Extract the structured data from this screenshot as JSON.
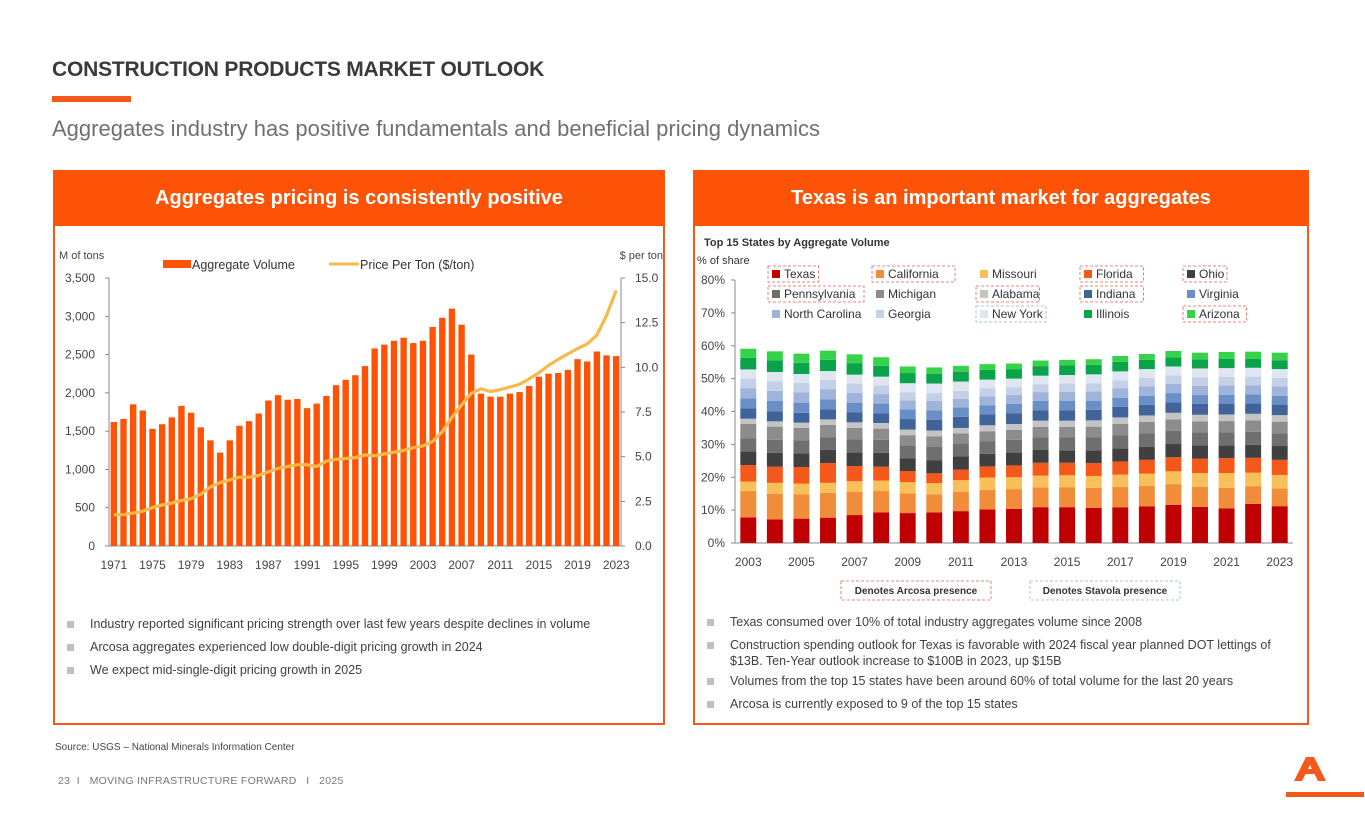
{
  "page": {
    "title": "CONSTRUCTION PRODUCTS MARKET OUTLOOK",
    "subtitle": "Aggregates industry has positive fundamentals and beneficial pricing dynamics",
    "source": "Source: USGS – National Minerals Information Center",
    "footer": "23  I   MOVING INFRASTRUCTURE FORWARD   I   2025"
  },
  "colors": {
    "accent": "#fc5307",
    "price_line": "#f6b94a"
  },
  "left_panel": {
    "header": "Aggregates pricing is consistently positive",
    "bullets": [
      "Industry reported significant pricing strength over last few years despite declines in volume",
      "Arcosa aggregates experienced low double-digit pricing growth in 2024",
      "We expect mid-single-digit pricing growth in 2025"
    ]
  },
  "right_panel": {
    "header": "Texas is an important market for aggregates",
    "bullets": [
      "Texas consumed over 10% of total industry aggregates volume since 2008",
      "Construction spending outlook for Texas is favorable with 2024 fiscal year planned DOT lettings of $13B. Ten-Year outlook increase to $100B in 2023, up $15B",
      "Volumes from the top 15 states have been around 60% of total volume for the last 20 years",
      "Arcosa is currently exposed to 9 of the top 15 states"
    ],
    "note_arcosa": "Denotes Arcosa presence",
    "note_stavola": "Denotes Stavola presence"
  },
  "chart_data": [
    {
      "type": "bar",
      "ylabel": "M of tons",
      "y2label": "$ per ton",
      "ylim": [
        0,
        3500
      ],
      "y2lim": [
        0,
        15
      ],
      "yticks": [
        "0",
        "500",
        "1,000",
        "1,500",
        "2,000",
        "2,500",
        "3,000",
        "3,500"
      ],
      "y2ticks": [
        "0.0",
        "2.5",
        "5.0",
        "7.5",
        "10.0",
        "12.5",
        "15.0"
      ],
      "xticks": [
        "1971",
        "1975",
        "1979",
        "1983",
        "1987",
        "1991",
        "1995",
        "1999",
        "2003",
        "2007",
        "2011",
        "2015",
        "2019",
        "2023"
      ],
      "legend_position": "top",
      "x": [
        1971,
        1972,
        1973,
        1974,
        1975,
        1976,
        1977,
        1978,
        1979,
        1980,
        1981,
        1982,
        1983,
        1984,
        1985,
        1986,
        1987,
        1988,
        1989,
        1990,
        1991,
        1992,
        1993,
        1994,
        1995,
        1996,
        1997,
        1998,
        1999,
        2000,
        2001,
        2002,
        2003,
        2004,
        2005,
        2006,
        2007,
        2008,
        2009,
        2010,
        2011,
        2012,
        2013,
        2014,
        2015,
        2016,
        2017,
        2018,
        2019,
        2020,
        2021,
        2022,
        2023
      ],
      "series": [
        {
          "name": "Aggregate Volume",
          "type": "bar",
          "axis": "left",
          "values": [
            1620,
            1660,
            1850,
            1770,
            1530,
            1590,
            1680,
            1830,
            1740,
            1550,
            1380,
            1220,
            1380,
            1570,
            1630,
            1730,
            1900,
            1970,
            1910,
            1920,
            1800,
            1860,
            1960,
            2100,
            2170,
            2230,
            2350,
            2580,
            2630,
            2680,
            2720,
            2650,
            2680,
            2860,
            2980,
            3100,
            2890,
            2500,
            1990,
            1950,
            1950,
            1990,
            2010,
            2090,
            2210,
            2250,
            2260,
            2300,
            2440,
            2410,
            2540,
            2490,
            2480
          ]
        },
        {
          "name": "Price Per Ton ($/ton)",
          "type": "line",
          "axis": "right",
          "values": [
            1.75,
            1.75,
            1.85,
            1.95,
            2.15,
            2.3,
            2.4,
            2.55,
            2.65,
            2.9,
            3.3,
            3.55,
            3.7,
            3.85,
            3.85,
            3.95,
            4.15,
            4.35,
            4.45,
            4.55,
            4.55,
            4.45,
            4.75,
            4.85,
            4.9,
            4.95,
            5.1,
            5.05,
            5.15,
            5.25,
            5.35,
            5.5,
            5.6,
            5.85,
            6.4,
            7.2,
            7.9,
            8.55,
            8.8,
            8.65,
            8.75,
            8.9,
            9.05,
            9.35,
            9.7,
            10.1,
            10.45,
            10.75,
            11.05,
            11.3,
            11.8,
            12.9,
            14.3
          ]
        }
      ]
    },
    {
      "type": "bar",
      "stacked": true,
      "title": "Top 15 States by Aggregate Volume",
      "ylabel": "% of share",
      "ylim": [
        0,
        80
      ],
      "yticks": [
        "0%",
        "10%",
        "20%",
        "30%",
        "40%",
        "50%",
        "60%",
        "70%",
        "80%"
      ],
      "xticks": [
        "2003",
        "2005",
        "2007",
        "2009",
        "2011",
        "2013",
        "2015",
        "2017",
        "2019",
        "2021",
        "2023"
      ],
      "legend_position": "top",
      "categories": [
        "2003",
        "2004",
        "2005",
        "2006",
        "2007",
        "2008",
        "2009",
        "2010",
        "2011",
        "2012",
        "2013",
        "2014",
        "2015",
        "2016",
        "2017",
        "2018",
        "2019",
        "2020",
        "2021",
        "2022",
        "2023"
      ],
      "arcosa_states": [
        "Texas",
        "California",
        "Florida",
        "Ohio",
        "Pennsylvania",
        "Alabama",
        "Indiana",
        "Arizona"
      ],
      "stavola_states": [
        "New York"
      ],
      "series": [
        {
          "name": "Texas",
          "color": "#c00000",
          "values": [
            7.8,
            7.2,
            7.4,
            7.7,
            8.5,
            9.3,
            9.1,
            9.3,
            9.7,
            10.2,
            10.4,
            10.9,
            10.9,
            10.7,
            10.8,
            11.1,
            11.6,
            11.0,
            10.5,
            11.9,
            11.2
          ]
        },
        {
          "name": "California",
          "color": "#f08c3a",
          "values": [
            8.0,
            7.8,
            7.4,
            7.6,
            7.0,
            6.5,
            6.0,
            5.5,
            5.8,
            6.0,
            6.0,
            6.0,
            6.1,
            6.1,
            6.3,
            6.3,
            6.3,
            6.1,
            6.3,
            5.4,
            5.4
          ]
        },
        {
          "name": "Missouri",
          "color": "#f9c05a",
          "values": [
            2.9,
            3.3,
            3.3,
            3.0,
            3.3,
            3.2,
            3.4,
            3.4,
            3.6,
            3.7,
            3.6,
            3.6,
            3.6,
            3.6,
            3.7,
            3.7,
            3.9,
            4.2,
            4.5,
            4.1,
            4.1
          ]
        },
        {
          "name": "Florida",
          "color": "#f4581a",
          "values": [
            5.0,
            4.9,
            5.0,
            6.0,
            4.6,
            4.2,
            3.4,
            3.0,
            3.2,
            3.4,
            3.6,
            3.9,
            3.8,
            3.9,
            4.0,
            4.2,
            4.3,
            4.4,
            4.5,
            4.5,
            4.6
          ]
        },
        {
          "name": "Ohio",
          "color": "#404040",
          "values": [
            4.2,
            4.2,
            4.2,
            4.0,
            4.1,
            4.2,
            3.8,
            3.9,
            4.0,
            3.8,
            3.9,
            3.9,
            3.8,
            3.9,
            4.0,
            4.0,
            4.0,
            4.0,
            3.9,
            4.0,
            4.2
          ]
        },
        {
          "name": "Pennsylvania",
          "color": "#6f6f6f",
          "values": [
            4.0,
            4.0,
            3.9,
            3.9,
            4.0,
            4.0,
            4.0,
            4.1,
            4.0,
            3.9,
            3.9,
            3.9,
            3.9,
            3.9,
            4.0,
            4.0,
            4.0,
            3.9,
            3.9,
            3.9,
            3.9
          ]
        },
        {
          "name": "Michigan",
          "color": "#8c8c8c",
          "values": [
            4.3,
            4.0,
            3.8,
            3.7,
            3.5,
            3.4,
            3.1,
            3.2,
            3.0,
            3.0,
            3.0,
            3.1,
            3.2,
            3.3,
            3.4,
            3.5,
            3.5,
            3.4,
            3.5,
            3.5,
            3.5
          ]
        },
        {
          "name": "Alabama",
          "color": "#c4c4c4",
          "values": [
            1.6,
            1.6,
            1.6,
            1.7,
            1.7,
            1.7,
            1.7,
            1.8,
            1.7,
            1.8,
            1.8,
            1.9,
            1.9,
            1.9,
            2.0,
            2.0,
            2.0,
            2.0,
            2.0,
            2.0,
            2.0
          ]
        },
        {
          "name": "Indiana",
          "color": "#40649a",
          "values": [
            3.1,
            3.1,
            3.0,
            3.0,
            3.0,
            3.0,
            3.2,
            3.3,
            3.4,
            3.3,
            3.3,
            3.2,
            3.2,
            3.2,
            3.2,
            3.2,
            3.2,
            3.3,
            3.3,
            3.2,
            3.2
          ]
        },
        {
          "name": "Virginia",
          "color": "#6a8ec6",
          "values": [
            3.1,
            3.1,
            3.1,
            3.1,
            3.0,
            2.9,
            2.9,
            2.9,
            2.8,
            2.8,
            2.8,
            2.8,
            2.8,
            2.8,
            2.8,
            2.8,
            2.8,
            2.7,
            2.7,
            2.7,
            2.7
          ]
        },
        {
          "name": "North Carolina",
          "color": "#9fb4d8",
          "values": [
            3.1,
            3.1,
            3.1,
            3.1,
            3.0,
            2.9,
            2.8,
            2.8,
            2.7,
            2.7,
            2.7,
            2.7,
            2.8,
            2.8,
            2.8,
            2.8,
            2.8,
            2.8,
            2.8,
            2.8,
            2.8
          ]
        },
        {
          "name": "Georgia",
          "color": "#c3d0e8",
          "values": [
            2.9,
            2.9,
            2.9,
            2.8,
            2.8,
            2.6,
            2.4,
            2.4,
            2.4,
            2.4,
            2.4,
            2.4,
            2.5,
            2.5,
            2.5,
            2.6,
            2.6,
            2.6,
            2.6,
            2.6,
            2.6
          ]
        },
        {
          "name": "New York",
          "color": "#dfe5f1",
          "values": [
            2.8,
            2.8,
            2.7,
            2.7,
            2.7,
            2.7,
            2.8,
            2.9,
            2.8,
            2.7,
            2.6,
            2.6,
            2.6,
            2.7,
            2.7,
            2.7,
            2.7,
            2.7,
            2.7,
            2.7,
            2.7
          ]
        },
        {
          "name": "Illinois",
          "color": "#0aa34a",
          "values": [
            3.5,
            3.5,
            3.4,
            3.4,
            3.4,
            3.3,
            3.1,
            3.0,
            3.0,
            3.0,
            2.9,
            2.9,
            2.9,
            2.9,
            2.9,
            2.8,
            2.8,
            2.8,
            2.8,
            2.7,
            2.7
          ]
        },
        {
          "name": "Arizona",
          "color": "#35d24a",
          "values": [
            2.8,
            2.8,
            2.8,
            2.8,
            2.8,
            2.6,
            2.0,
            1.9,
            1.8,
            1.7,
            1.7,
            1.7,
            1.7,
            1.7,
            1.8,
            1.8,
            1.9,
            2.0,
            2.1,
            2.2,
            2.3
          ]
        }
      ]
    }
  ]
}
